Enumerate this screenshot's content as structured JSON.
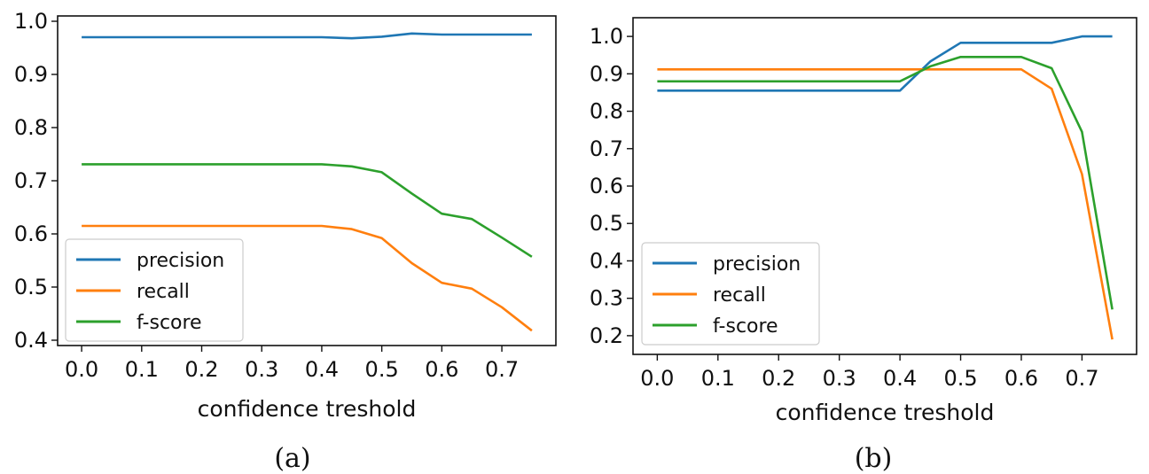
{
  "chart_data": [
    {
      "type": "line",
      "caption": "(a)",
      "xlabel": "confidence treshold",
      "ylabel": "",
      "xlim": [
        -0.04,
        0.79
      ],
      "ylim": [
        0.39,
        1.01
      ],
      "xticks": [
        0.0,
        0.1,
        0.2,
        0.3,
        0.4,
        0.5,
        0.6,
        0.7
      ],
      "xtick_labels": [
        "0.0",
        "0.1",
        "0.2",
        "0.3",
        "0.4",
        "0.5",
        "0.6",
        "0.7"
      ],
      "yticks": [
        0.4,
        0.5,
        0.6,
        0.7,
        0.8,
        0.9,
        1.0
      ],
      "ytick_labels": [
        "0.4",
        "0.5",
        "0.6",
        "0.7",
        "0.8",
        "0.9",
        "1.0"
      ],
      "legend_position": "lower-left",
      "grid": false,
      "x": [
        0.0,
        0.05,
        0.1,
        0.15,
        0.2,
        0.25,
        0.3,
        0.35,
        0.4,
        0.45,
        0.5,
        0.55,
        0.6,
        0.65,
        0.7,
        0.75
      ],
      "series": [
        {
          "name": "precision",
          "color": "#1f77b4",
          "values": [
            0.97,
            0.97,
            0.97,
            0.97,
            0.97,
            0.97,
            0.97,
            0.97,
            0.97,
            0.968,
            0.971,
            0.977,
            0.975,
            0.975,
            0.975,
            0.975
          ]
        },
        {
          "name": "recall",
          "color": "#ff7f0e",
          "values": [
            0.615,
            0.615,
            0.615,
            0.615,
            0.615,
            0.615,
            0.615,
            0.615,
            0.615,
            0.609,
            0.592,
            0.545,
            0.508,
            0.497,
            0.462,
            0.418
          ]
        },
        {
          "name": "f-score",
          "color": "#2ca02c",
          "values": [
            0.731,
            0.731,
            0.731,
            0.731,
            0.731,
            0.731,
            0.731,
            0.731,
            0.731,
            0.727,
            0.716,
            0.676,
            0.638,
            0.628,
            0.593,
            0.557
          ]
        }
      ]
    },
    {
      "type": "line",
      "caption": "(b)",
      "xlabel": "confidence treshold",
      "ylabel": "",
      "xlim": [
        -0.04,
        0.79
      ],
      "ylim": [
        0.15,
        1.05
      ],
      "xticks": [
        0.0,
        0.1,
        0.2,
        0.3,
        0.4,
        0.5,
        0.6,
        0.7
      ],
      "xtick_labels": [
        "0.0",
        "0.1",
        "0.2",
        "0.3",
        "0.4",
        "0.5",
        "0.6",
        "0.7"
      ],
      "yticks": [
        0.2,
        0.3,
        0.4,
        0.5,
        0.6,
        0.7,
        0.8,
        0.9,
        1.0
      ],
      "ytick_labels": [
        "0.2",
        "0.3",
        "0.4",
        "0.5",
        "0.6",
        "0.7",
        "0.8",
        "0.9",
        "1.0"
      ],
      "legend_position": "lower-left",
      "grid": false,
      "x": [
        0.0,
        0.05,
        0.1,
        0.15,
        0.2,
        0.25,
        0.3,
        0.35,
        0.4,
        0.45,
        0.5,
        0.55,
        0.6,
        0.65,
        0.7,
        0.75
      ],
      "series": [
        {
          "name": "precision",
          "color": "#1f77b4",
          "values": [
            0.855,
            0.855,
            0.855,
            0.855,
            0.855,
            0.855,
            0.855,
            0.855,
            0.855,
            0.933,
            0.983,
            0.983,
            0.983,
            0.983,
            1.0,
            1.0
          ]
        },
        {
          "name": "recall",
          "color": "#ff7f0e",
          "values": [
            0.912,
            0.912,
            0.912,
            0.912,
            0.912,
            0.912,
            0.912,
            0.912,
            0.912,
            0.912,
            0.912,
            0.912,
            0.912,
            0.86,
            0.632,
            0.19
          ]
        },
        {
          "name": "f-score",
          "color": "#2ca02c",
          "values": [
            0.88,
            0.88,
            0.88,
            0.88,
            0.88,
            0.88,
            0.88,
            0.88,
            0.88,
            0.92,
            0.945,
            0.945,
            0.945,
            0.915,
            0.745,
            0.27
          ]
        }
      ]
    }
  ]
}
